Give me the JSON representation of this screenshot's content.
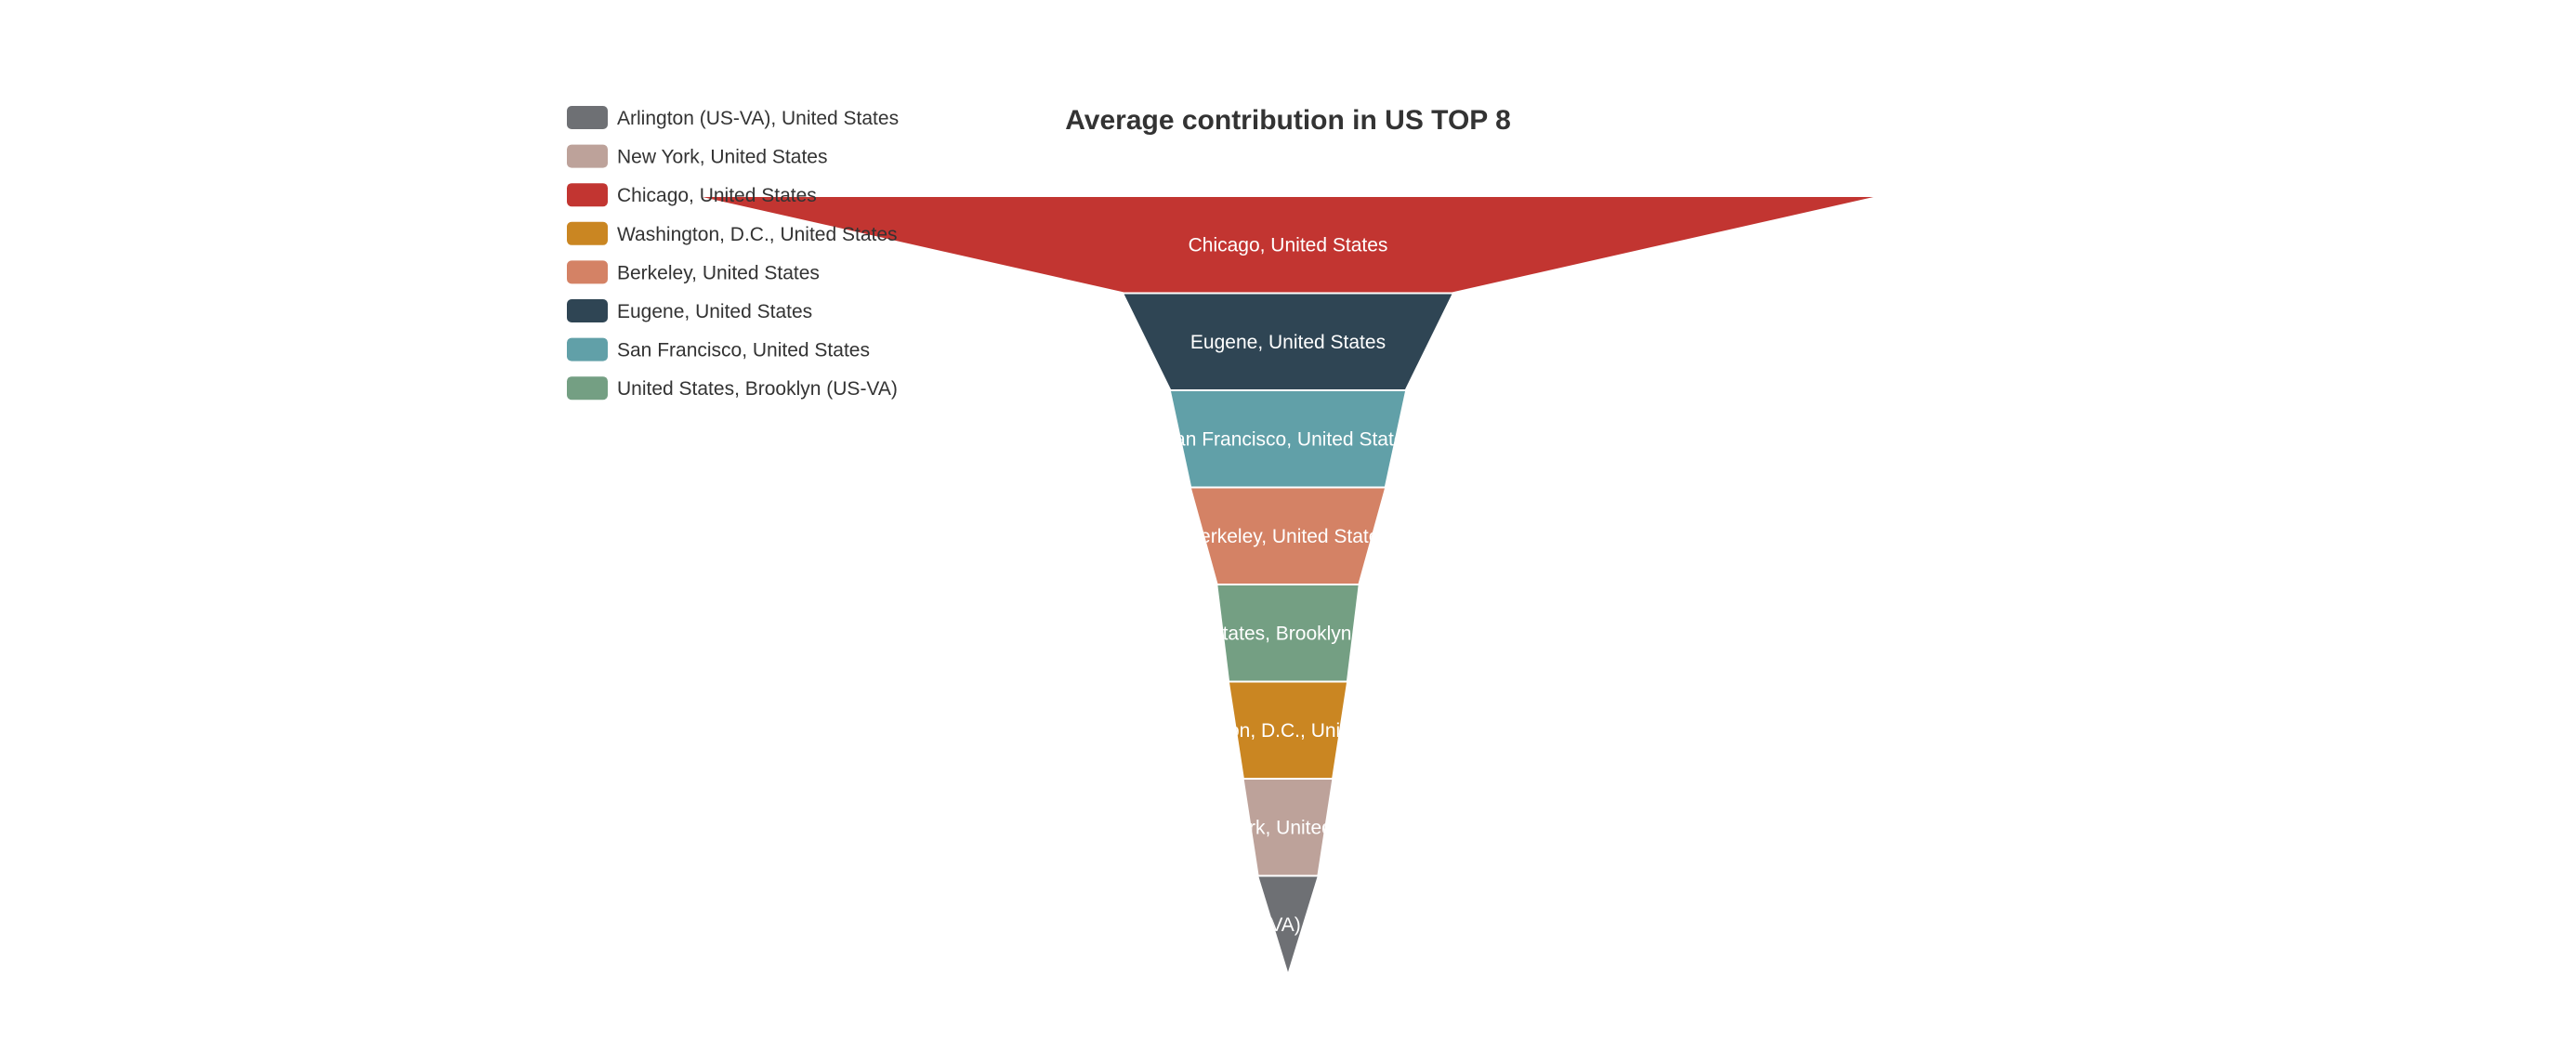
{
  "chart_data": {
    "type": "funnel",
    "title": "Average contribution in US TOP 8",
    "legend_placement": "top-left",
    "legend": [
      {
        "name": "Arlington (US-VA), United States",
        "color": "#6e7074"
      },
      {
        "name": "New York, United States",
        "color": "#bda29a"
      },
      {
        "name": "Chicago, United States",
        "color": "#c23531"
      },
      {
        "name": "Washington, D.C., United States",
        "color": "#ca8622"
      },
      {
        "name": "Berkeley, United States",
        "color": "#d48265"
      },
      {
        "name": "Eugene, United States",
        "color": "#2f4554"
      },
      {
        "name": "San Francisco, United States",
        "color": "#61a0a8"
      },
      {
        "name": "United States, Brooklyn (US-VA)",
        "color": "#749f83"
      }
    ],
    "segments": [
      {
        "name": "Chicago, United States",
        "value": 100,
        "color": "#c23531"
      },
      {
        "name": "Eugene, United States",
        "value": 28,
        "color": "#2f4554"
      },
      {
        "name": "San Francisco, United States",
        "value": 20,
        "color": "#61a0a8"
      },
      {
        "name": "Berkeley, United States",
        "value": 16.5,
        "color": "#d48265"
      },
      {
        "name": "United States, Brooklyn (US-VA)",
        "value": 12,
        "color": "#749f83"
      },
      {
        "name": "Washington, D.C., United States",
        "value": 10,
        "color": "#ca8622"
      },
      {
        "name": "New York, United States",
        "value": 7.5,
        "color": "#bda29a"
      },
      {
        "name": "Arlington (US-VA), United States",
        "value": 5,
        "color": "#6e7074"
      }
    ]
  }
}
